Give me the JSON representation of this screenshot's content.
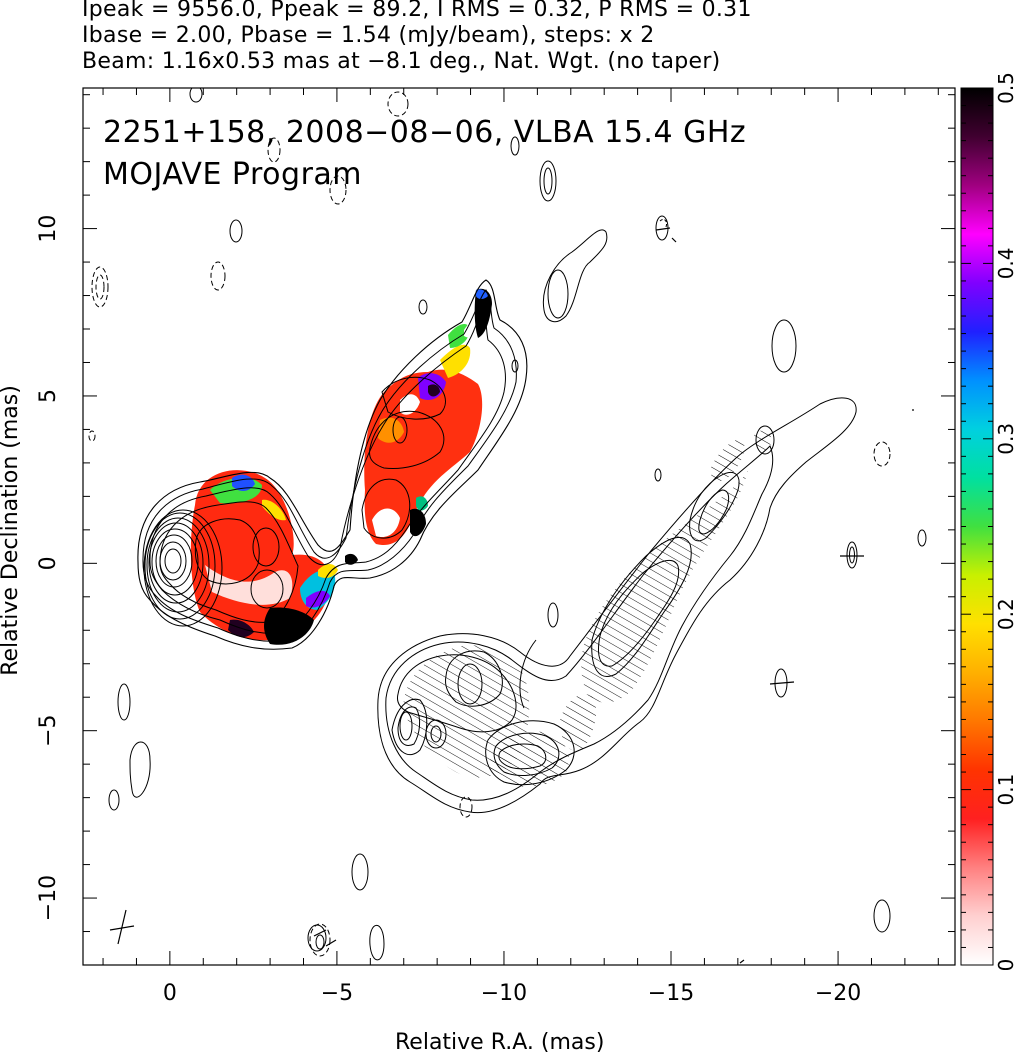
{
  "header": {
    "line1": "Ipeak = 9556.0, Ppeak = 89.2, I RMS = 0.32, P RMS = 0.31",
    "line2": "Ibase = 2.00, Pbase = 1.54 (mJy/beam), steps: x 2",
    "line3": "Beam: 1.16x0.53 mas at −8.1 deg., Nat. Wgt. (no taper)"
  },
  "chart_data": {
    "type": "contour",
    "title": "2251+158, 2008−08−06, VLBA 15.4 GHz",
    "subtitle": "MOJAVE Program",
    "xlabel": "Relative R.A. (mas)",
    "ylabel": "Relative Declination (mas)",
    "xlim": [
      2.6,
      -23.5
    ],
    "ylim": [
      -12.0,
      14.2
    ],
    "xticks": [
      0,
      -5,
      -10,
      -15,
      -20
    ],
    "xtick_labels": [
      "0",
      "−5",
      "−10",
      "−15",
      "−20"
    ],
    "yticks": [
      10,
      5,
      0,
      -5,
      -10
    ],
    "ytick_labels": [
      "10",
      "5",
      "0",
      "−5",
      "−10"
    ],
    "colorbar": {
      "label_ticks": [
        0,
        0.1,
        0.2,
        0.3,
        0.4,
        0.5
      ],
      "label_texts": [
        "0",
        "0.1",
        "0.2",
        "0.3",
        "0.4",
        "0.5"
      ],
      "range": [
        0,
        0.5
      ],
      "colors": [
        "#ffffff",
        "#ffd0d0",
        "#ff8080",
        "#ff2020",
        "#ff3300",
        "#ff7700",
        "#ffb000",
        "#ffe000",
        "#c8f000",
        "#40e040",
        "#00e0a0",
        "#00d0e0",
        "#0090ff",
        "#2020ff",
        "#8000ff",
        "#ff00ff",
        "#a00080",
        "#400030",
        "#000000"
      ]
    },
    "core": {
      "x": 0.0,
      "y": 0.0
    },
    "contour_levels_mJy": [
      2,
      4,
      8,
      16,
      32,
      64,
      128,
      256,
      512,
      1024,
      2048,
      4096,
      8192
    ],
    "beam": {
      "major_mas": 1.16,
      "minor_mas": 0.53,
      "pa_deg": -8.1
    },
    "grid": false
  }
}
